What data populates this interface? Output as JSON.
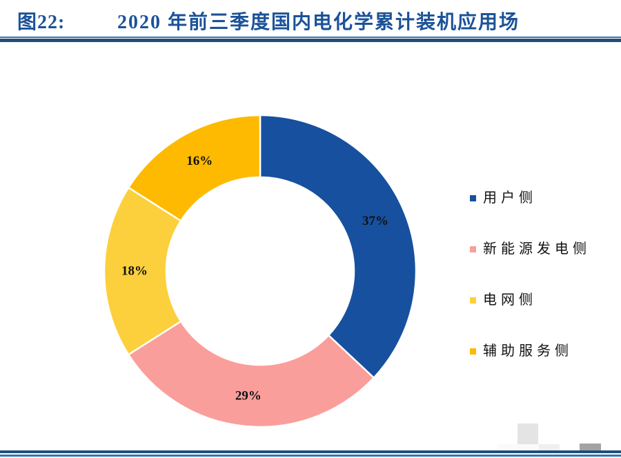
{
  "figure": {
    "label": "图22:",
    "title": "2020 年前三季度国内电化学累计装机应用场"
  },
  "colors": {
    "title_text": "#1B5299",
    "rule_dark": "#1F4E79",
    "rule_light": "#2E74B5",
    "slice_border": "#FFFFFF",
    "label_text": "#111111"
  },
  "chart_data": {
    "type": "pie",
    "subtype": "donut",
    "title": "2020 年前三季度国内电化学累计装机应用场",
    "unit": "%",
    "label_suffix": "%",
    "start_angle_deg": 0,
    "direction": "clockwise",
    "hole_ratio": 0.6,
    "legend_position": "right",
    "grid": false,
    "series": [
      {
        "name": "用户侧",
        "value": 37,
        "color": "#17509E"
      },
      {
        "name": "新能源发电侧",
        "value": 29,
        "color": "#FA9E9B"
      },
      {
        "name": "电网侧",
        "value": 18,
        "color": "#FCD03C"
      },
      {
        "name": "辅助服务侧",
        "value": 16,
        "color": "#FDBA00"
      }
    ]
  }
}
